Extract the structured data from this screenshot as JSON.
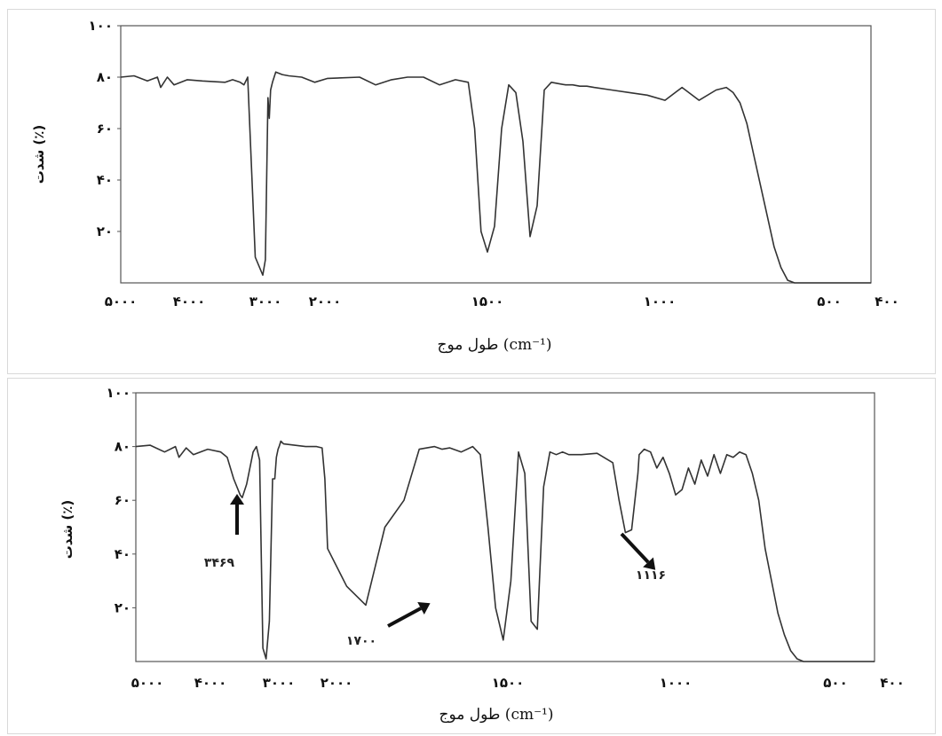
{
  "chart_data": [
    {
      "type": "line",
      "xlabel": "طول موج (cm⁻¹)",
      "ylabel": "شدت (٪)",
      "x_tick_labels": [
        "۵۰۰۰",
        "۴۰۰۰",
        "۳۰۰۰",
        "۲۰۰۰",
        "۱۵۰۰",
        "۱۰۰۰",
        "۵۰۰",
        "۴۰۰"
      ],
      "y_tick_labels": [
        "۱۰۰",
        "۸۰",
        "۶۰",
        "۴۰",
        "۲۰"
      ],
      "ylim": [
        0,
        100
      ],
      "series": [
        {
          "x": [
            5000,
            4800,
            4600,
            4450,
            4400,
            4300,
            4200,
            4000,
            3800,
            3500,
            3400,
            3300,
            3250,
            3200,
            3100,
            3000,
            2960,
            2920,
            2900,
            2880,
            2850,
            2800,
            2700,
            2600,
            2400,
            2200,
            2000,
            1900,
            1850,
            1800,
            1750,
            1700,
            1650,
            1600,
            1560,
            1540,
            1520,
            1500,
            1480,
            1460,
            1440,
            1420,
            1400,
            1380,
            1360,
            1340,
            1320,
            1300,
            1280,
            1260,
            1240,
            1220,
            1200,
            1150,
            1100,
            1050,
            1000,
            950,
            900,
            850,
            820,
            800,
            780,
            760,
            740,
            720,
            700,
            680,
            660,
            640,
            620,
            600,
            580,
            560,
            540,
            520,
            500,
            480,
            460,
            440,
            420,
            400
          ],
          "y": [
            80,
            80.5,
            78.5,
            80,
            76,
            80,
            77,
            79,
            78.5,
            78,
            79,
            78,
            77,
            80,
            10,
            3,
            9,
            72,
            64,
            75,
            78,
            82,
            81,
            80.5,
            80,
            78,
            79.5,
            80,
            77,
            79,
            80,
            80,
            77,
            79,
            78,
            60,
            20,
            12,
            22,
            60,
            77,
            74,
            55,
            18,
            30,
            75,
            78,
            77.5,
            77,
            77,
            76.5,
            76.5,
            76,
            75,
            74,
            73,
            71,
            76,
            71,
            75,
            76,
            74,
            70,
            62,
            50,
            38,
            26,
            14,
            6,
            1,
            0,
            0,
            0,
            0,
            0,
            0,
            0,
            0,
            0,
            0,
            0,
            0
          ]
        }
      ]
    },
    {
      "type": "line",
      "xlabel": "طول موج (cm⁻¹)",
      "ylabel": "شدت (٪)",
      "x_tick_labels": [
        "۵۰۰۰",
        "۴۰۰۰",
        "۳۰۰۰",
        "۲۰۰۰",
        "۱۵۰۰",
        "۱۰۰۰",
        "۵۰۰",
        "۴۰۰"
      ],
      "y_tick_labels": [
        "۱۰۰",
        "۸۰",
        "۶۰",
        "۴۰",
        "۲۰"
      ],
      "ylim": [
        0,
        100
      ],
      "annotations": [
        {
          "label": "۳۴۶۹",
          "x": 3469,
          "y": 61
        },
        {
          "label": "۱۷۰۰",
          "x": 1700,
          "y": 21
        },
        {
          "label": "۱۱۱۶",
          "x": 1116,
          "y": 48
        }
      ],
      "series": [
        {
          "x": [
            5000,
            4800,
            4600,
            4450,
            4400,
            4300,
            4200,
            4000,
            3800,
            3700,
            3600,
            3500,
            3469,
            3400,
            3300,
            3250,
            3200,
            3150,
            3100,
            3050,
            3000,
            2960,
            2930,
            2900,
            2880,
            2850,
            2800,
            2600,
            2400,
            2200,
            2100,
            2050,
            2000,
            1950,
            1900,
            1850,
            1800,
            1760,
            1720,
            1700,
            1680,
            1650,
            1620,
            1600,
            1580,
            1560,
            1540,
            1520,
            1500,
            1480,
            1460,
            1440,
            1420,
            1400,
            1380,
            1360,
            1340,
            1300,
            1250,
            1200,
            1180,
            1160,
            1140,
            1120,
            1116,
            1100,
            1080,
            1060,
            1040,
            1020,
            1000,
            980,
            960,
            940,
            920,
            900,
            880,
            860,
            840,
            820,
            800,
            780,
            760,
            740,
            720,
            700,
            680,
            660,
            640,
            620,
            600,
            580,
            560,
            540,
            520,
            500,
            480,
            460,
            440,
            420,
            400
          ],
          "y": [
            80,
            80.5,
            78,
            80,
            76,
            79.5,
            77,
            79,
            78,
            76,
            68,
            62,
            61,
            66,
            78,
            80,
            75,
            5,
            1,
            15,
            68,
            68,
            76,
            79,
            80,
            82,
            81,
            80.5,
            80,
            80,
            79.5,
            68,
            42,
            28,
            21,
            50,
            60,
            79,
            80,
            79,
            79.5,
            78,
            80,
            77,
            50,
            20,
            8,
            30,
            78,
            70,
            15,
            12,
            65,
            78,
            77,
            78,
            77,
            77,
            77.5,
            74,
            60,
            48,
            49,
            70,
            77,
            79,
            78,
            72,
            76,
            70,
            62,
            64,
            72,
            66,
            75,
            69,
            77,
            70,
            77,
            76,
            78,
            77,
            70,
            60,
            42,
            30,
            18,
            10,
            4,
            1,
            0,
            0,
            0,
            0,
            0,
            0,
            0,
            0,
            0,
            0,
            0
          ]
        }
      ]
    }
  ],
  "colors": {
    "trace": "#333333",
    "frame": "#555555",
    "arrow": "#111111"
  }
}
